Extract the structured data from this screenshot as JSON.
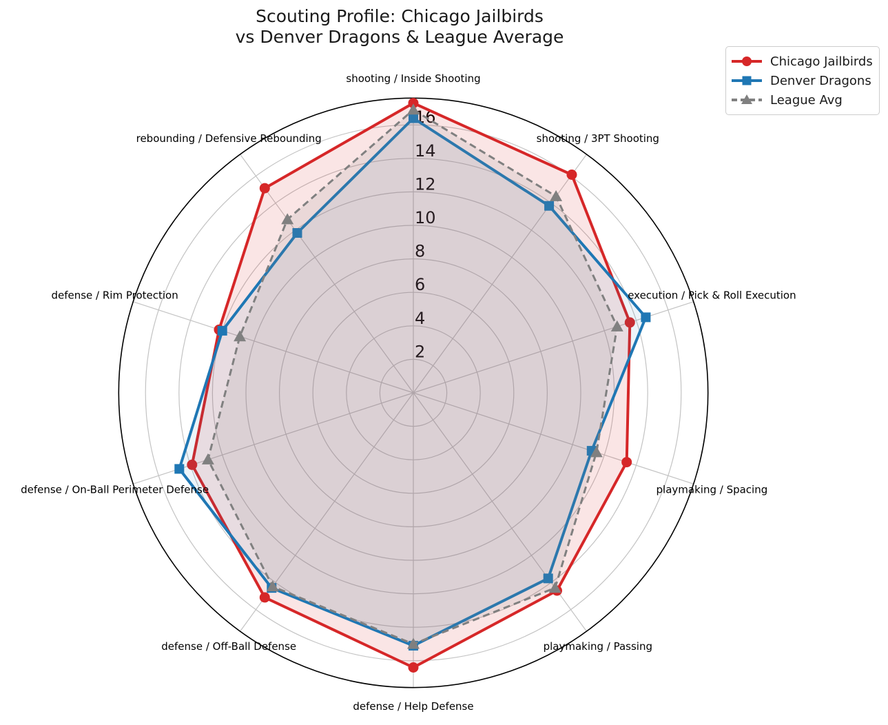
{
  "title": {
    "line1": "Scouting Profile: Chicago Jailbirds",
    "line2": "vs Denver Dragons & League Average"
  },
  "chart_data": {
    "type": "radar",
    "title": "Scouting Profile: Chicago Jailbirds vs Denver Dragons & League Average",
    "categories": [
      "shooting / Inside Shooting",
      "shooting / 3PT Shooting",
      "execution / Pick & Roll Execution",
      "playmaking / Spacing",
      "playmaking / Passing",
      "defense / Help Defense",
      "defense / Off-Ball Defense",
      "defense / On-Ball Perimeter Defense",
      "defense / Rim Protection",
      "rebounding / Defensive Rebounding"
    ],
    "series": [
      {
        "name": "Chicago Jailbirds",
        "color": "#d62728",
        "marker": "circle",
        "dash": "solid",
        "values": [
          17.3,
          16.1,
          13.6,
          13.4,
          14.6,
          16.4,
          15.1,
          13.9,
          12.2,
          15.1
        ]
      },
      {
        "name": "Denver Dragons",
        "color": "#1f77b4",
        "marker": "square",
        "dash": "solid",
        "values": [
          16.4,
          13.8,
          14.6,
          11.2,
          13.7,
          15.1,
          14.4,
          14.7,
          12.0,
          11.8
        ]
      },
      {
        "name": "League Avg",
        "color": "#808080",
        "marker": "triangle",
        "dash": "dashed",
        "values": [
          16.9,
          14.5,
          12.8,
          11.5,
          14.4,
          15.0,
          14.3,
          12.9,
          10.9,
          12.8
        ]
      }
    ],
    "radial_ticks": [
      2,
      4,
      6,
      8,
      10,
      12,
      14,
      16
    ],
    "r_max": 17.6,
    "angle_start": "top",
    "direction": "clockwise",
    "grid": true,
    "legend_position": "upper right",
    "fill_opacity": [
      0.12,
      0.08,
      0.13
    ]
  },
  "colors": {
    "chicago": "#d62728",
    "denver": "#1f77b4",
    "league_avg": "#808080",
    "grid": "#c3c3c3",
    "spine": "#000000",
    "text": "#000000",
    "background": "#ffffff"
  }
}
